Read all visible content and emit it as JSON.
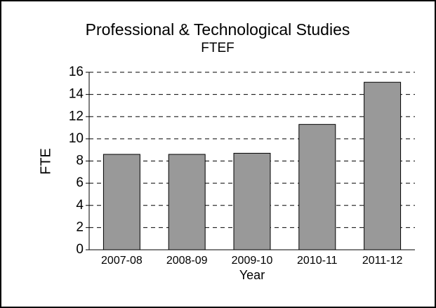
{
  "chart_data": {
    "type": "bar",
    "title": "Professional & Technological Studies",
    "subtitle": "FTEF",
    "x_label": "Year",
    "y_label": "FTE",
    "categories": [
      "2007-08",
      "2008-09",
      "2009-10",
      "2010-11",
      "2011-12"
    ],
    "values": [
      8.6,
      8.6,
      8.7,
      11.3,
      15.1
    ],
    "color": "#999999",
    "ylim": [
      0,
      16
    ],
    "yticks": [
      0,
      2,
      4,
      6,
      8,
      10,
      12,
      14,
      16
    ],
    "grid": true
  }
}
